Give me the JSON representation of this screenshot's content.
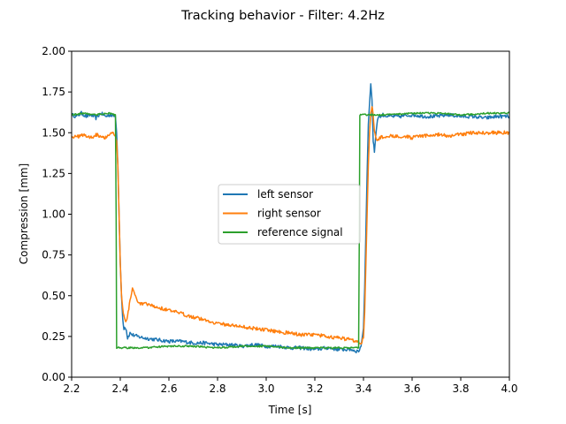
{
  "chart_data": {
    "type": "line",
    "title": "Tracking behavior - Filter: 4.2Hz",
    "xlabel": "Time [s]",
    "ylabel": "Compression [mm]",
    "xlim": [
      2.2,
      4.0
    ],
    "ylim": [
      0.0,
      2.0
    ],
    "xticks": [
      2.2,
      2.4,
      2.6,
      2.8,
      3.0,
      3.2,
      3.4,
      3.6,
      3.8,
      4.0
    ],
    "xtick_labels": [
      "2.2",
      "2.4",
      "2.6",
      "2.8",
      "3.0",
      "3.2",
      "3.4",
      "3.6",
      "3.8",
      "4.0"
    ],
    "yticks": [
      0.0,
      0.25,
      0.5,
      0.75,
      1.0,
      1.25,
      1.5,
      1.75,
      2.0
    ],
    "ytick_labels": [
      "0.00",
      "0.25",
      "0.50",
      "0.75",
      "1.00",
      "1.25",
      "1.50",
      "1.75",
      "2.00"
    ],
    "grid": false,
    "legend_position": "center",
    "series": [
      {
        "name": "left sensor",
        "color": "#1f77b4",
        "x": [
          2.2,
          2.22,
          2.24,
          2.26,
          2.28,
          2.3,
          2.32,
          2.34,
          2.36,
          2.38,
          2.385,
          2.39,
          2.395,
          2.4,
          2.405,
          2.41,
          2.415,
          2.42,
          2.425,
          2.43,
          2.44,
          2.45,
          2.47,
          2.5,
          2.55,
          2.6,
          2.65,
          2.7,
          2.75,
          2.8,
          2.85,
          2.9,
          2.95,
          3.0,
          3.05,
          3.1,
          3.15,
          3.2,
          3.25,
          3.3,
          3.35,
          3.37,
          3.38,
          3.39,
          3.4,
          3.405,
          3.41,
          3.415,
          3.42,
          3.425,
          3.43,
          3.435,
          3.44,
          3.445,
          3.45,
          3.455,
          3.46,
          3.47,
          3.48,
          3.5,
          3.55,
          3.6,
          3.65,
          3.7,
          3.75,
          3.8,
          3.85,
          3.9,
          3.95,
          4.0
        ],
        "y": [
          1.61,
          1.6,
          1.62,
          1.6,
          1.61,
          1.59,
          1.62,
          1.6,
          1.61,
          1.6,
          1.5,
          1.3,
          1.0,
          0.7,
          0.5,
          0.36,
          0.3,
          0.31,
          0.29,
          0.24,
          0.27,
          0.26,
          0.25,
          0.24,
          0.23,
          0.22,
          0.22,
          0.21,
          0.21,
          0.2,
          0.2,
          0.19,
          0.2,
          0.19,
          0.19,
          0.18,
          0.18,
          0.17,
          0.18,
          0.17,
          0.17,
          0.16,
          0.16,
          0.19,
          0.3,
          0.55,
          0.9,
          1.25,
          1.55,
          1.68,
          1.8,
          1.7,
          1.45,
          1.38,
          1.48,
          1.55,
          1.6,
          1.6,
          1.61,
          1.6,
          1.6,
          1.61,
          1.6,
          1.6,
          1.61,
          1.6,
          1.6,
          1.59,
          1.6,
          1.6
        ]
      },
      {
        "name": "right sensor",
        "color": "#ff7f0e",
        "x": [
          2.2,
          2.22,
          2.24,
          2.26,
          2.28,
          2.3,
          2.32,
          2.34,
          2.36,
          2.38,
          2.385,
          2.39,
          2.395,
          2.4,
          2.405,
          2.41,
          2.415,
          2.42,
          2.425,
          2.43,
          2.435,
          2.44,
          2.45,
          2.46,
          2.47,
          2.48,
          2.5,
          2.55,
          2.6,
          2.65,
          2.7,
          2.75,
          2.8,
          2.85,
          2.9,
          2.95,
          3.0,
          3.05,
          3.1,
          3.15,
          3.2,
          3.25,
          3.3,
          3.35,
          3.38,
          3.39,
          3.4,
          3.405,
          3.41,
          3.415,
          3.42,
          3.425,
          3.43,
          3.435,
          3.44,
          3.445,
          3.45,
          3.46,
          3.47,
          3.5,
          3.55,
          3.6,
          3.65,
          3.7,
          3.75,
          3.8,
          3.85,
          3.9,
          3.95,
          4.0
        ],
        "y": [
          1.48,
          1.47,
          1.49,
          1.48,
          1.47,
          1.49,
          1.48,
          1.47,
          1.5,
          1.49,
          1.45,
          1.3,
          1.0,
          0.7,
          0.5,
          0.42,
          0.38,
          0.35,
          0.34,
          0.38,
          0.42,
          0.47,
          0.55,
          0.5,
          0.46,
          0.45,
          0.45,
          0.43,
          0.41,
          0.39,
          0.37,
          0.35,
          0.33,
          0.32,
          0.31,
          0.3,
          0.29,
          0.28,
          0.27,
          0.26,
          0.26,
          0.25,
          0.24,
          0.23,
          0.22,
          0.21,
          0.24,
          0.4,
          0.7,
          1.0,
          1.3,
          1.5,
          1.62,
          1.67,
          1.6,
          1.52,
          1.47,
          1.45,
          1.47,
          1.48,
          1.48,
          1.47,
          1.48,
          1.49,
          1.48,
          1.49,
          1.5,
          1.5,
          1.5,
          1.5
        ]
      },
      {
        "name": "reference signal",
        "color": "#2ca02c",
        "x": [
          2.2,
          2.25,
          2.3,
          2.35,
          2.38,
          2.383,
          2.385,
          2.4,
          2.5,
          2.6,
          2.7,
          2.8,
          2.9,
          3.0,
          3.1,
          3.2,
          3.3,
          3.35,
          3.38,
          3.383,
          3.385,
          3.4,
          3.5,
          3.6,
          3.7,
          3.8,
          3.9,
          4.0
        ],
        "y": [
          1.61,
          1.62,
          1.61,
          1.62,
          1.61,
          1.0,
          0.18,
          0.18,
          0.18,
          0.19,
          0.19,
          0.18,
          0.19,
          0.19,
          0.18,
          0.18,
          0.18,
          0.18,
          0.18,
          0.9,
          1.61,
          1.61,
          1.61,
          1.62,
          1.62,
          1.61,
          1.62,
          1.62
        ]
      }
    ]
  }
}
